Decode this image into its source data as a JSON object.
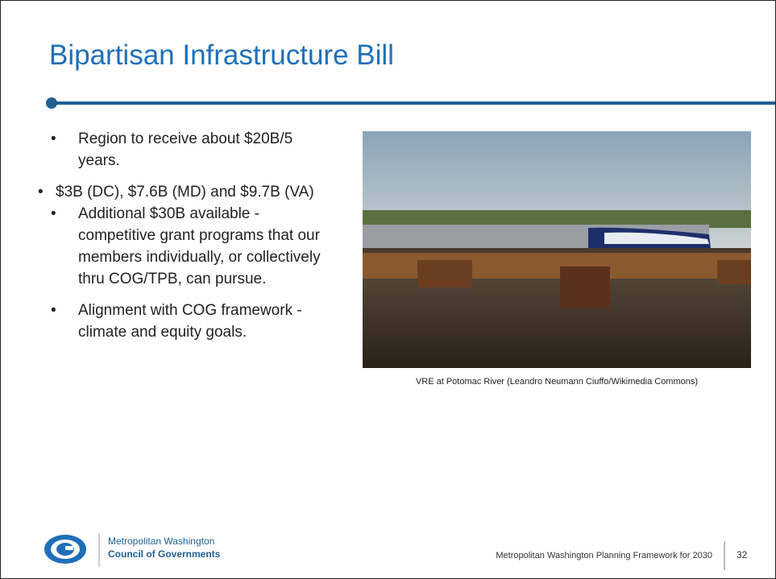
{
  "slide": {
    "title": "Bipartisan Infrastructure Bill",
    "bullets": [
      {
        "text": "Region to receive about $20B/5 years.",
        "sub": [
          "$3B (DC), $7.6B (MD) and $9.7B (VA)"
        ]
      },
      {
        "text": "Additional $30B available - competitive grant programs that our members individually, or collectively thru COG/TPB, can pursue.",
        "sub": []
      },
      {
        "text": "Alignment with COG framework - climate and equity goals.",
        "sub": []
      }
    ],
    "image_caption": "VRE at Potomac River (Leandro Neumann Ciuffo/Wikimedia Commons)",
    "footer": {
      "org_line1": "Metropolitan Washington",
      "org_line2": "Council of Governments",
      "text": "Metropolitan Washington Planning Framework for 2030",
      "page_number": "32"
    }
  }
}
